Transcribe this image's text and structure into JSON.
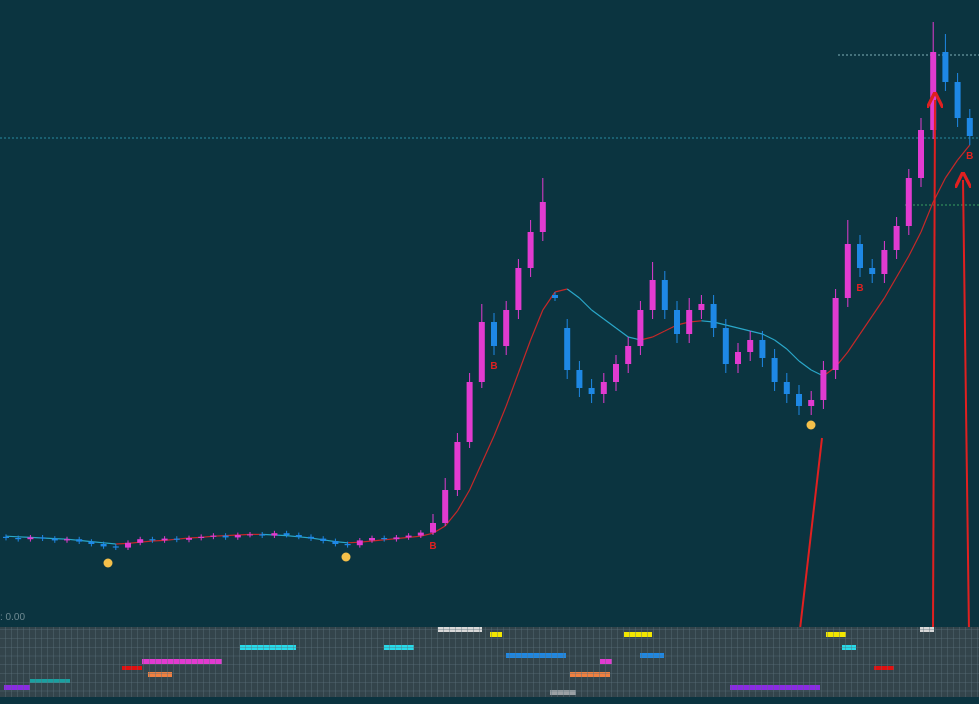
{
  "chart_data": {
    "type": "candlestick",
    "ylim": [
      0,
      100
    ],
    "up_color": "#e23bd0",
    "down_color": "#1e88e5",
    "open": [
      12.2,
      12.0,
      11.8,
      12.1,
      11.9,
      11.6,
      11.8,
      11.4,
      11.0,
      10.6,
      10.4,
      11.2,
      11.8,
      11.6,
      11.9,
      11.7,
      12.0,
      12.2,
      12.4,
      12.1,
      12.5,
      12.6,
      12.4,
      12.8,
      12.5,
      12.2,
      11.9,
      11.5,
      11.0,
      10.8,
      11.6,
      12.0,
      11.8,
      12.1,
      12.4,
      12.9,
      14.5,
      20,
      28,
      38,
      48,
      44,
      50,
      57,
      63,
      52.5,
      47,
      40,
      37,
      36,
      38,
      41,
      44,
      50,
      55,
      50,
      46,
      50,
      51,
      47,
      41,
      43,
      45,
      42,
      38,
      36,
      34,
      35,
      40,
      52,
      61,
      57,
      56,
      60,
      64,
      72,
      80,
      93,
      88,
      82
    ],
    "high": [
      12.6,
      12.4,
      12.5,
      12.5,
      12.3,
      12.2,
      12.2,
      11.8,
      11.4,
      11.0,
      11.6,
      12.2,
      12.2,
      12.3,
      12.3,
      12.4,
      12.6,
      12.8,
      12.8,
      12.9,
      13.0,
      13.0,
      13.2,
      13.2,
      12.9,
      12.6,
      12.3,
      11.9,
      11.4,
      12.0,
      12.4,
      12.4,
      12.5,
      12.8,
      13.3,
      16,
      22,
      29.5,
      39.5,
      51,
      49.5,
      51.5,
      58.5,
      65,
      72,
      53,
      48.5,
      41.5,
      38.5,
      39.5,
      42.5,
      45.5,
      51.5,
      58,
      56.5,
      51.5,
      52,
      52.5,
      52.5,
      48.5,
      44.5,
      46.5,
      46.5,
      43.5,
      39.5,
      37.5,
      36.5,
      41.5,
      53.5,
      65,
      62.5,
      58.5,
      61.5,
      65.5,
      73.5,
      82,
      98,
      96,
      89.5,
      83.5
    ],
    "low": [
      11.6,
      11.4,
      11.4,
      11.5,
      11.2,
      11.2,
      11.0,
      10.6,
      10.2,
      10.0,
      10.0,
      10.8,
      11.2,
      11.2,
      11.3,
      11.3,
      11.6,
      11.8,
      11.7,
      11.7,
      12.1,
      12.0,
      12.0,
      12.1,
      11.8,
      11.5,
      11.1,
      10.6,
      10.4,
      10.4,
      11.2,
      11.4,
      11.4,
      11.7,
      12.0,
      12.5,
      14,
      19,
      27,
      37,
      42.5,
      42.5,
      48.5,
      55.5,
      61.5,
      51.5,
      38.5,
      35.5,
      34.5,
      34.5,
      36.5,
      39.5,
      42.5,
      48.5,
      48.5,
      44.5,
      44.5,
      48.5,
      45.5,
      39.5,
      39.5,
      41.5,
      40.5,
      36.5,
      34.5,
      32.5,
      32.5,
      33.5,
      38.5,
      50.5,
      55.5,
      54.5,
      54.5,
      58.5,
      62.5,
      70.5,
      78.5,
      86.5,
      80.5,
      77.5
    ],
    "close": [
      12.0,
      11.8,
      12.1,
      11.9,
      11.6,
      11.8,
      11.4,
      11.0,
      10.6,
      10.4,
      11.2,
      11.8,
      11.6,
      11.9,
      11.7,
      12.0,
      12.2,
      12.4,
      12.1,
      12.5,
      12.6,
      12.4,
      12.8,
      12.5,
      12.2,
      11.9,
      11.5,
      11.0,
      10.8,
      11.6,
      12.0,
      11.8,
      12.1,
      12.4,
      12.9,
      14.5,
      20,
      28,
      38,
      48,
      44,
      50,
      57,
      63,
      68,
      52,
      40,
      37,
      36,
      38,
      41,
      44,
      50,
      55,
      50,
      46,
      50,
      51,
      47,
      41,
      43,
      45,
      42,
      38,
      36,
      34,
      35,
      40,
      52,
      61,
      57,
      56,
      60,
      64,
      72,
      80,
      93,
      88,
      82,
      79
    ],
    "ma": {
      "up_color": "#c62828",
      "down_color": "#2aa7c9",
      "values": [
        12.3,
        12.2,
        12.1,
        12.0,
        11.9,
        11.8,
        11.6,
        11.4,
        11.2,
        11.0,
        11.1,
        11.3,
        11.5,
        11.6,
        11.8,
        12.0,
        12.1,
        12.3,
        12.4,
        12.5,
        12.6,
        12.6,
        12.5,
        12.4,
        12.2,
        12.0,
        11.7,
        11.4,
        11.2,
        11.3,
        11.5,
        11.7,
        11.9,
        12.1,
        12.3,
        12.8,
        14,
        16.5,
        20,
        24.5,
        29,
        34,
        39.5,
        45,
        50,
        53,
        53.5,
        52,
        50,
        48.5,
        47,
        45.5,
        45,
        45.5,
        46.5,
        47.5,
        48,
        48.2,
        48,
        47.5,
        47,
        46.5,
        46,
        45,
        43.5,
        41.5,
        40,
        39,
        40.5,
        43,
        46,
        49,
        52,
        55.5,
        59,
        63,
        68,
        72,
        75,
        77.5
      ]
    },
    "signals": [
      null,
      null,
      null,
      null,
      null,
      null,
      null,
      null,
      null,
      null,
      null,
      null,
      null,
      null,
      null,
      null,
      null,
      null,
      null,
      null,
      null,
      null,
      null,
      null,
      null,
      null,
      null,
      null,
      null,
      null,
      null,
      null,
      null,
      null,
      null,
      "B",
      null,
      null,
      null,
      null,
      "B",
      null,
      null,
      null,
      null,
      null,
      null,
      null,
      null,
      null,
      null,
      null,
      null,
      null,
      null,
      null,
      null,
      null,
      null,
      null,
      null,
      null,
      null,
      null,
      null,
      null,
      null,
      null,
      null,
      null,
      "B",
      null,
      null,
      null,
      null,
      null,
      null,
      null,
      null,
      "B"
    ],
    "indicator_label": ": 0.00"
  }
}
